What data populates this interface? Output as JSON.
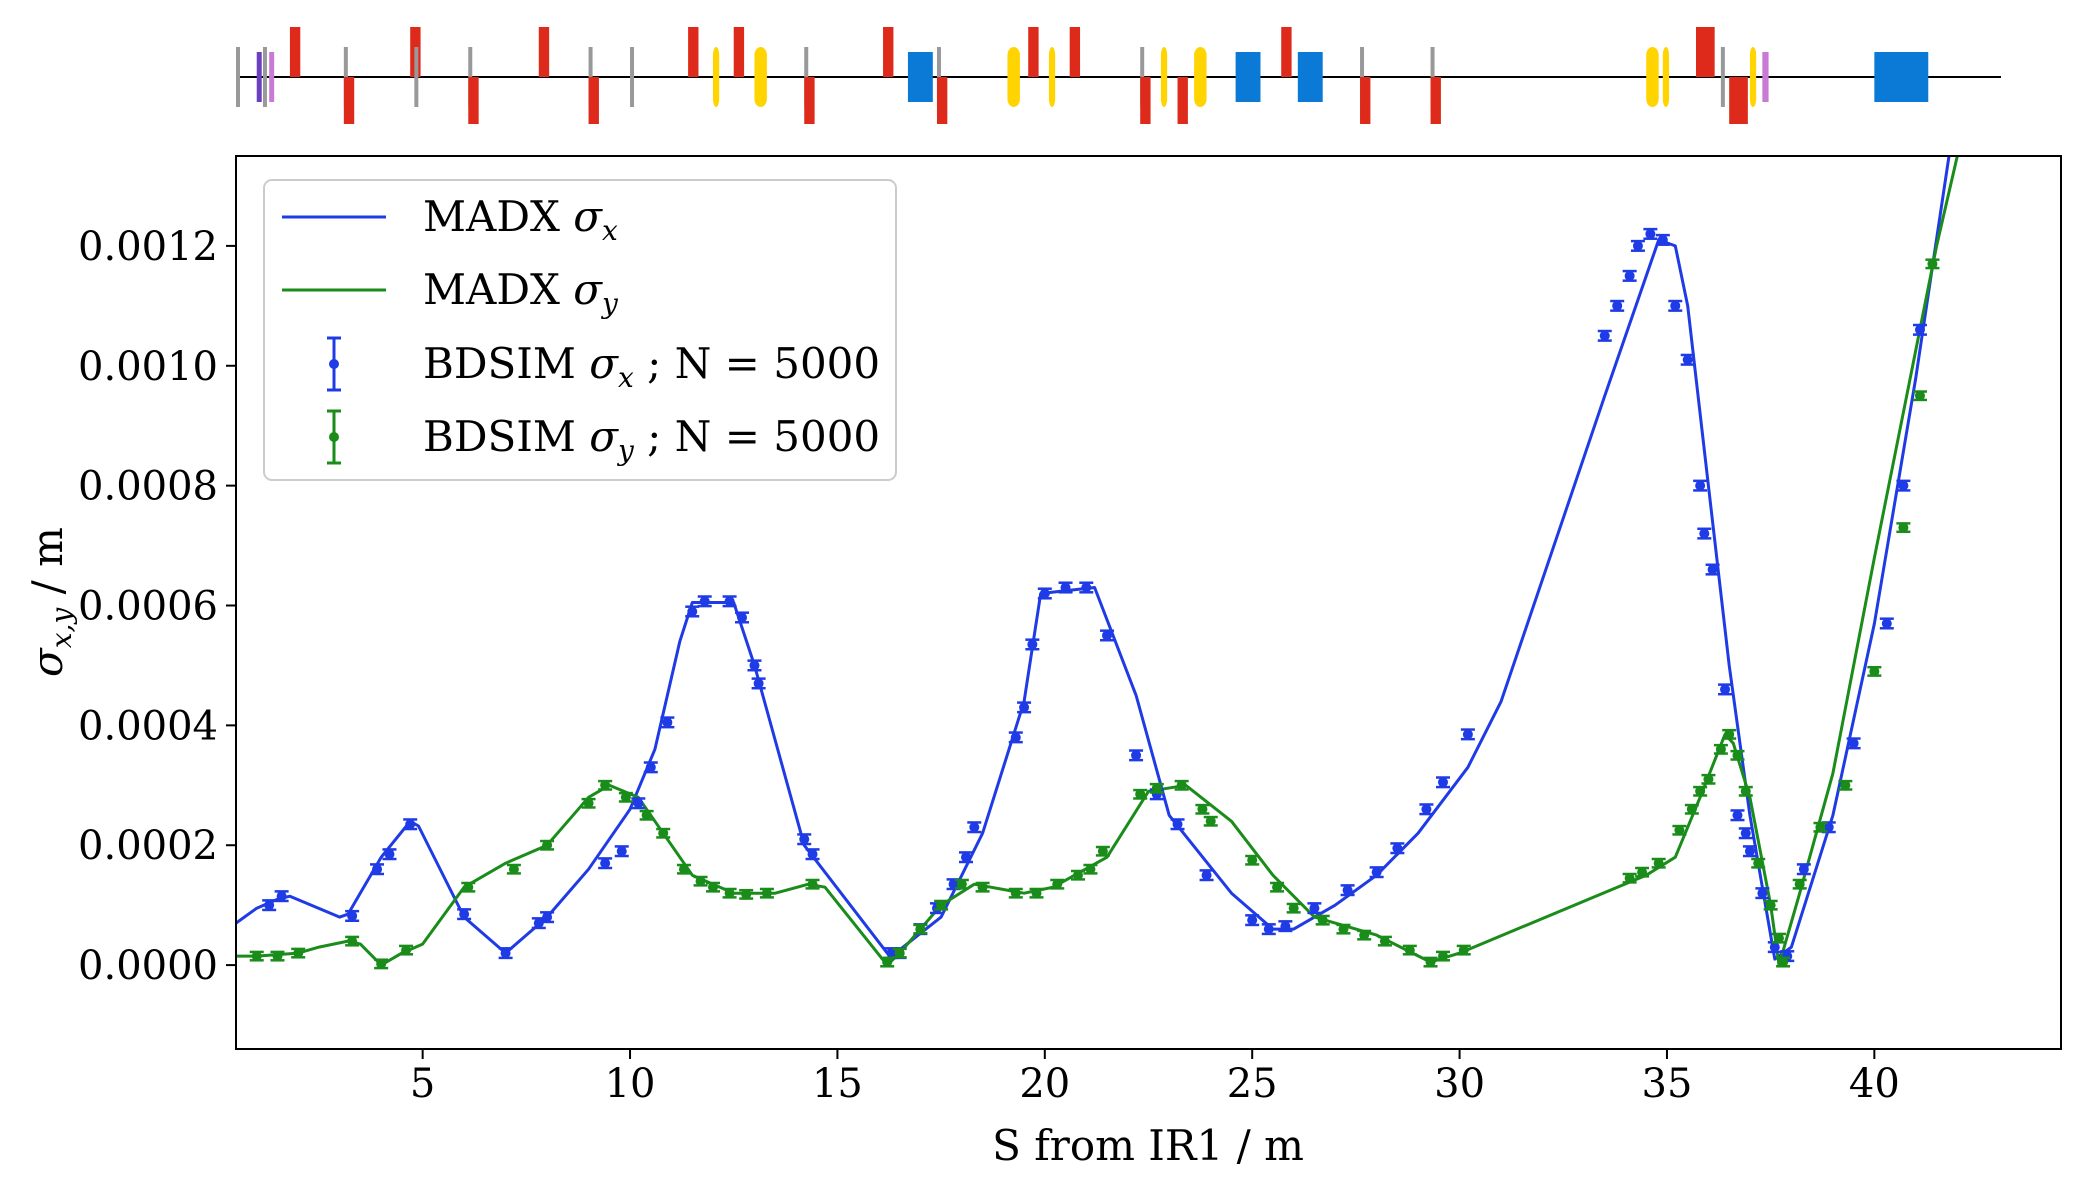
{
  "chart_data": {
    "type": "line",
    "xlabel": "S from IR1 / m",
    "ylabel": {
      "main": "σ",
      "sub": "x,y",
      "unit": " / m"
    },
    "xlim": [
      0.5,
      44.5
    ],
    "ylim": [
      -0.00014,
      0.00135
    ],
    "xticks": [
      5,
      10,
      15,
      20,
      25,
      30,
      35,
      40
    ],
    "xtick_labels": [
      "5",
      "10",
      "15",
      "20",
      "25",
      "30",
      "35",
      "40"
    ],
    "yticks": [
      0.0,
      0.0002,
      0.0004,
      0.0006,
      0.0008,
      0.001,
      0.0012
    ],
    "ytick_labels": [
      "0.0000",
      "0.0002",
      "0.0004",
      "0.0006",
      "0.0008",
      "0.0010",
      "0.0012"
    ],
    "grid": false,
    "legend_position": "upper-left",
    "legend": [
      {
        "kind": "line",
        "text": "MADX ",
        "sym": "σ",
        "sub": "x",
        "suffix": "",
        "color": "#1f3be6"
      },
      {
        "kind": "line",
        "text": "MADX ",
        "sym": "σ",
        "sub": "y",
        "suffix": "",
        "color": "#1a8c1a"
      },
      {
        "kind": "errorbar",
        "text": "BDSIM ",
        "sym": "σ",
        "sub": "x",
        "suffix": " ; N = 5000",
        "color": "#1f3be6"
      },
      {
        "kind": "errorbar",
        "text": "BDSIM ",
        "sym": "σ",
        "sub": "y",
        "suffix": " ; N = 5000",
        "color": "#1a8c1a"
      }
    ],
    "series": [
      {
        "name": "MADX σx",
        "role": "line",
        "color": "#1f3be6",
        "x": [
          0.5,
          1.0,
          1.5,
          1.8,
          3.0,
          3.2,
          4.0,
          4.7,
          4.9,
          6.0,
          7.0,
          8.0,
          9.0,
          10.0,
          10.6,
          11.2,
          11.5,
          12.5,
          13.0,
          14.2,
          16.2,
          16.4,
          17.5,
          18.5,
          19.5,
          19.9,
          21.2,
          22.2,
          23.0,
          24.5,
          25.5,
          26.0,
          27.0,
          28.0,
          29.0,
          30.2,
          31.0,
          33.5,
          34.8,
          35.2,
          35.5,
          36.0,
          36.5,
          37.0,
          37.6,
          38.0,
          39.0,
          40.0,
          41.0,
          41.8,
          44.5
        ],
        "y": [
          7e-05,
          9.5e-05,
          0.00011,
          0.000115,
          8e-05,
          8.5e-05,
          0.00018,
          0.00024,
          0.000232,
          8e-05,
          2e-05,
          8e-05,
          0.00016,
          0.00026,
          0.00036,
          0.00054,
          0.000605,
          0.000605,
          0.0005,
          0.0002,
          2e-05,
          2e-05,
          8e-05,
          0.00022,
          0.00044,
          0.00062,
          0.00063,
          0.00045,
          0.00025,
          0.00012,
          6e-05,
          6e-05,
          0.0001,
          0.00015,
          0.00022,
          0.00033,
          0.00044,
          0.00095,
          0.00121,
          0.0012,
          0.0011,
          0.0008,
          0.0005,
          0.00025,
          1e-05,
          3e-05,
          0.00025,
          0.00057,
          0.00098,
          0.00135,
          0.0022
        ]
      },
      {
        "name": "MADX σy",
        "role": "line",
        "color": "#1a8c1a",
        "x": [
          0.5,
          1.0,
          2.0,
          2.5,
          3.2,
          3.5,
          4.0,
          4.5,
          5.0,
          6.0,
          7.0,
          8.0,
          9.0,
          9.5,
          10.2,
          10.8,
          11.5,
          12.5,
          13.5,
          14.3,
          14.7,
          16.2,
          16.5,
          17.5,
          18.3,
          19.5,
          20.2,
          21.5,
          22.5,
          23.4,
          24.5,
          25.5,
          26.5,
          28.0,
          29.3,
          30.0,
          34.5,
          35.2,
          35.8,
          36.4,
          36.6,
          37.0,
          37.5,
          37.7,
          38.2,
          39.0,
          40.0,
          41.5,
          42.0,
          44.5
        ],
        "y": [
          1.5e-05,
          1.5e-05,
          2e-05,
          3e-05,
          4e-05,
          3.5e-05,
          0.0,
          2e-05,
          3.5e-05,
          0.00013,
          0.00017,
          0.0002,
          0.00028,
          0.0003,
          0.00028,
          0.00022,
          0.00015,
          0.00012,
          0.00012,
          0.000135,
          0.00013,
          0.0,
          2e-05,
          0.0001,
          0.000135,
          0.00012,
          0.00013,
          0.00018,
          0.00029,
          0.0003,
          0.00024,
          0.00015,
          8e-05,
          5e-05,
          5e-06,
          2e-05,
          0.00015,
          0.00018,
          0.00028,
          0.000385,
          0.00037,
          0.00028,
          0.0001,
          0.0,
          0.00012,
          0.00032,
          0.00068,
          0.0012,
          0.00135,
          0.0022
        ]
      },
      {
        "name": "BDSIM σx ; N = 5000",
        "role": "errorbar",
        "color": "#1f3be6",
        "err": 8e-06,
        "x": [
          1.3,
          1.6,
          3.3,
          3.9,
          4.2,
          4.7,
          6.0,
          7.0,
          7.8,
          8.0,
          9.4,
          9.8,
          10.2,
          10.5,
          10.9,
          11.5,
          11.8,
          12.4,
          12.7,
          13.0,
          13.1,
          14.2,
          14.4,
          16.3,
          16.5,
          17.0,
          17.4,
          17.8,
          18.1,
          18.3,
          19.3,
          19.5,
          19.7,
          20.0,
          20.5,
          21.0,
          21.5,
          22.2,
          22.7,
          23.2,
          23.9,
          25.0,
          25.4,
          25.8,
          26.5,
          27.3,
          28.0,
          28.5,
          29.2,
          29.6,
          30.2,
          33.5,
          33.8,
          34.1,
          34.3,
          34.6,
          34.9,
          35.2,
          35.5,
          35.8,
          35.9,
          36.1,
          36.4,
          36.7,
          36.9,
          37.0,
          37.3,
          37.6,
          37.9,
          38.3,
          38.9,
          39.5,
          40.3,
          40.7,
          41.1
        ],
        "y": [
          0.0001,
          0.000115,
          8.2e-05,
          0.00016,
          0.000185,
          0.000235,
          8.5e-05,
          2e-05,
          7e-05,
          8e-05,
          0.00017,
          0.00019,
          0.00027,
          0.00033,
          0.000405,
          0.00059,
          0.000607,
          0.000607,
          0.00058,
          0.0005,
          0.00047,
          0.00021,
          0.000185,
          2e-05,
          2e-05,
          6e-05,
          9.5e-05,
          0.000135,
          0.00018,
          0.00023,
          0.00038,
          0.00043,
          0.000535,
          0.00062,
          0.00063,
          0.00063,
          0.00055,
          0.00035,
          0.000285,
          0.000235,
          0.00015,
          7.5e-05,
          6e-05,
          6.5e-05,
          9.5e-05,
          0.000125,
          0.000155,
          0.000195,
          0.00026,
          0.000305,
          0.000385,
          0.00105,
          0.0011,
          0.00115,
          0.0012,
          0.00122,
          0.00121,
          0.0011,
          0.00101,
          0.0008,
          0.00072,
          0.00066,
          0.00046,
          0.00025,
          0.00022,
          0.00019,
          0.00012,
          3e-05,
          1.5e-05,
          0.00016,
          0.00023,
          0.00037,
          0.00057,
          0.0008,
          0.00106
        ]
      },
      {
        "name": "BDSIM σy ; N = 5000",
        "role": "errorbar",
        "color": "#1a8c1a",
        "x": [
          1.0,
          1.5,
          2.0,
          3.3,
          4.0,
          4.6,
          6.1,
          7.2,
          8.0,
          9.0,
          9.4,
          9.9,
          10.4,
          10.8,
          11.3,
          11.7,
          12.0,
          12.4,
          12.8,
          13.3,
          14.4,
          16.2,
          16.5,
          17.0,
          17.5,
          18.0,
          18.5,
          19.3,
          19.8,
          20.3,
          20.8,
          21.1,
          21.4,
          22.3,
          22.7,
          23.3,
          23.8,
          24.0,
          25.0,
          25.6,
          26.0,
          26.7,
          27.2,
          27.7,
          28.2,
          28.8,
          29.3,
          29.6,
          30.1,
          34.1,
          34.4,
          34.8,
          35.3,
          35.6,
          35.8,
          36.0,
          36.3,
          36.5,
          36.7,
          36.9,
          37.2,
          37.5,
          37.7,
          37.8,
          38.2,
          38.7,
          39.3,
          40.0,
          40.7,
          41.1,
          41.4
        ],
        "err": 7e-06,
        "y": [
          1.5e-05,
          1.5e-05,
          2e-05,
          4e-05,
          2e-06,
          2.5e-05,
          0.00013,
          0.00016,
          0.0002,
          0.00027,
          0.0003,
          0.00028,
          0.00025,
          0.00022,
          0.00016,
          0.00014,
          0.00013,
          0.00012,
          0.000118,
          0.00012,
          0.000135,
          5e-06,
          2e-05,
          6e-05,
          0.0001,
          0.000135,
          0.00013,
          0.00012,
          0.00012,
          0.000135,
          0.00015,
          0.00016,
          0.00019,
          0.000285,
          0.000295,
          0.0003,
          0.00026,
          0.00024,
          0.000175,
          0.00013,
          9.5e-05,
          7.5e-05,
          6e-05,
          5e-05,
          4e-05,
          2.5e-05,
          5e-06,
          1.5e-05,
          2.5e-05,
          0.000145,
          0.000155,
          0.00017,
          0.000225,
          0.00026,
          0.00029,
          0.00031,
          0.00036,
          0.000385,
          0.00035,
          0.00029,
          0.00017,
          0.0001,
          4.5e-05,
          5e-06,
          0.000135,
          0.00023,
          0.0003,
          0.00049,
          0.00073,
          0.00095,
          0.00117
        ]
      }
    ],
    "beamline": {
      "line_x": [
        0.5,
        44.5
      ],
      "elements": [
        {
          "type": "marker",
          "s": 0.5,
          "len": 0.05,
          "side": "both",
          "color": "#999999"
        },
        {
          "type": "marker",
          "s": 1.15,
          "len": 0.05,
          "side": "both",
          "color": "#999999"
        },
        {
          "type": "quad-h",
          "s": 1.8,
          "len": 0.25,
          "side": "up",
          "color": "#dd2a1b"
        },
        {
          "type": "kicker",
          "s": 1.0,
          "len": 0.12,
          "side": "both",
          "color": "#6a3fc0"
        },
        {
          "type": "kicker",
          "s": 1.3,
          "len": 0.12,
          "side": "both",
          "color": "#c87ad6"
        },
        {
          "type": "marker",
          "s": 3.1,
          "len": 0.05,
          "side": "both",
          "color": "#999999"
        },
        {
          "type": "quad-v",
          "s": 3.1,
          "len": 0.25,
          "side": "down",
          "color": "#dd2a1b"
        },
        {
          "type": "quad-h",
          "s": 4.7,
          "len": 0.25,
          "side": "up",
          "color": "#dd2a1b"
        },
        {
          "type": "marker",
          "s": 4.8,
          "len": 0.05,
          "side": "both",
          "color": "#999999"
        },
        {
          "type": "marker",
          "s": 6.1,
          "len": 0.05,
          "side": "both",
          "color": "#999999"
        },
        {
          "type": "quad-v",
          "s": 6.1,
          "len": 0.25,
          "side": "down",
          "color": "#dd2a1b"
        },
        {
          "type": "quad-h",
          "s": 7.8,
          "len": 0.25,
          "side": "up",
          "color": "#dd2a1b"
        },
        {
          "type": "marker",
          "s": 9.0,
          "len": 0.05,
          "side": "both",
          "color": "#999999"
        },
        {
          "type": "quad-v",
          "s": 9.0,
          "len": 0.25,
          "side": "down",
          "color": "#dd2a1b"
        },
        {
          "type": "marker",
          "s": 10.0,
          "len": 0.05,
          "side": "both",
          "color": "#999999"
        },
        {
          "type": "quad-h",
          "s": 11.4,
          "len": 0.25,
          "side": "up",
          "color": "#dd2a1b"
        },
        {
          "type": "sext",
          "s": 12.0,
          "len": 0.15,
          "side": "both",
          "color": "#ffd400"
        },
        {
          "type": "quad-h",
          "s": 12.5,
          "len": 0.25,
          "side": "up",
          "color": "#dd2a1b"
        },
        {
          "type": "sext",
          "s": 13.0,
          "len": 0.3,
          "side": "both",
          "color": "#ffd400"
        },
        {
          "type": "marker",
          "s": 14.2,
          "len": 0.05,
          "side": "both",
          "color": "#999999"
        },
        {
          "type": "quad-v",
          "s": 14.2,
          "len": 0.25,
          "side": "down",
          "color": "#dd2a1b"
        },
        {
          "type": "quad-h",
          "s": 16.1,
          "len": 0.25,
          "side": "up",
          "color": "#dd2a1b"
        },
        {
          "type": "bend",
          "s": 16.7,
          "len": 0.6,
          "side": "both",
          "color": "#0a7ad6"
        },
        {
          "type": "marker",
          "s": 17.4,
          "len": 0.05,
          "side": "both",
          "color": "#999999"
        },
        {
          "type": "quad-v",
          "s": 17.4,
          "len": 0.25,
          "side": "down",
          "color": "#dd2a1b"
        },
        {
          "type": "sext",
          "s": 19.1,
          "len": 0.3,
          "side": "both",
          "color": "#ffd400"
        },
        {
          "type": "quad-h",
          "s": 19.6,
          "len": 0.25,
          "side": "up",
          "color": "#dd2a1b"
        },
        {
          "type": "sext",
          "s": 20.1,
          "len": 0.15,
          "side": "both",
          "color": "#ffd400"
        },
        {
          "type": "quad-h",
          "s": 20.6,
          "len": 0.25,
          "side": "up",
          "color": "#dd2a1b"
        },
        {
          "type": "marker",
          "s": 22.3,
          "len": 0.05,
          "side": "both",
          "color": "#999999"
        },
        {
          "type": "quad-v",
          "s": 22.3,
          "len": 0.25,
          "side": "down",
          "color": "#dd2a1b"
        },
        {
          "type": "sext",
          "s": 22.8,
          "len": 0.15,
          "side": "both",
          "color": "#ffd400"
        },
        {
          "type": "quad-v",
          "s": 23.2,
          "len": 0.25,
          "side": "down",
          "color": "#dd2a1b"
        },
        {
          "type": "sext",
          "s": 23.6,
          "len": 0.3,
          "side": "both",
          "color": "#ffd400"
        },
        {
          "type": "bend",
          "s": 24.6,
          "len": 0.6,
          "side": "both",
          "color": "#0a7ad6"
        },
        {
          "type": "quad-h",
          "s": 25.7,
          "len": 0.25,
          "side": "up",
          "color": "#dd2a1b"
        },
        {
          "type": "bend",
          "s": 26.1,
          "len": 0.6,
          "side": "both",
          "color": "#0a7ad6"
        },
        {
          "type": "marker",
          "s": 27.6,
          "len": 0.05,
          "side": "both",
          "color": "#999999"
        },
        {
          "type": "quad-v",
          "s": 27.6,
          "len": 0.25,
          "side": "down",
          "color": "#dd2a1b"
        },
        {
          "type": "marker",
          "s": 29.3,
          "len": 0.05,
          "side": "both",
          "color": "#999999"
        },
        {
          "type": "quad-v",
          "s": 29.3,
          "len": 0.25,
          "side": "down",
          "color": "#dd2a1b"
        },
        {
          "type": "sext",
          "s": 34.5,
          "len": 0.3,
          "side": "both",
          "color": "#ffd400"
        },
        {
          "type": "sext",
          "s": 34.9,
          "len": 0.15,
          "side": "both",
          "color": "#ffd400"
        },
        {
          "type": "quad-h",
          "s": 35.7,
          "len": 0.45,
          "side": "up",
          "color": "#dd2a1b"
        },
        {
          "type": "marker",
          "s": 36.3,
          "len": 0.05,
          "side": "both",
          "color": "#999999"
        },
        {
          "type": "quad-v",
          "s": 36.5,
          "len": 0.45,
          "side": "down",
          "color": "#dd2a1b"
        },
        {
          "type": "sext",
          "s": 37.0,
          "len": 0.15,
          "side": "both",
          "color": "#ffd400"
        },
        {
          "type": "kicker",
          "s": 37.3,
          "len": 0.15,
          "side": "both",
          "color": "#c87ad6"
        },
        {
          "type": "bend",
          "s": 40.0,
          "len": 1.3,
          "side": "both",
          "color": "#0a7ad6"
        }
      ]
    }
  }
}
